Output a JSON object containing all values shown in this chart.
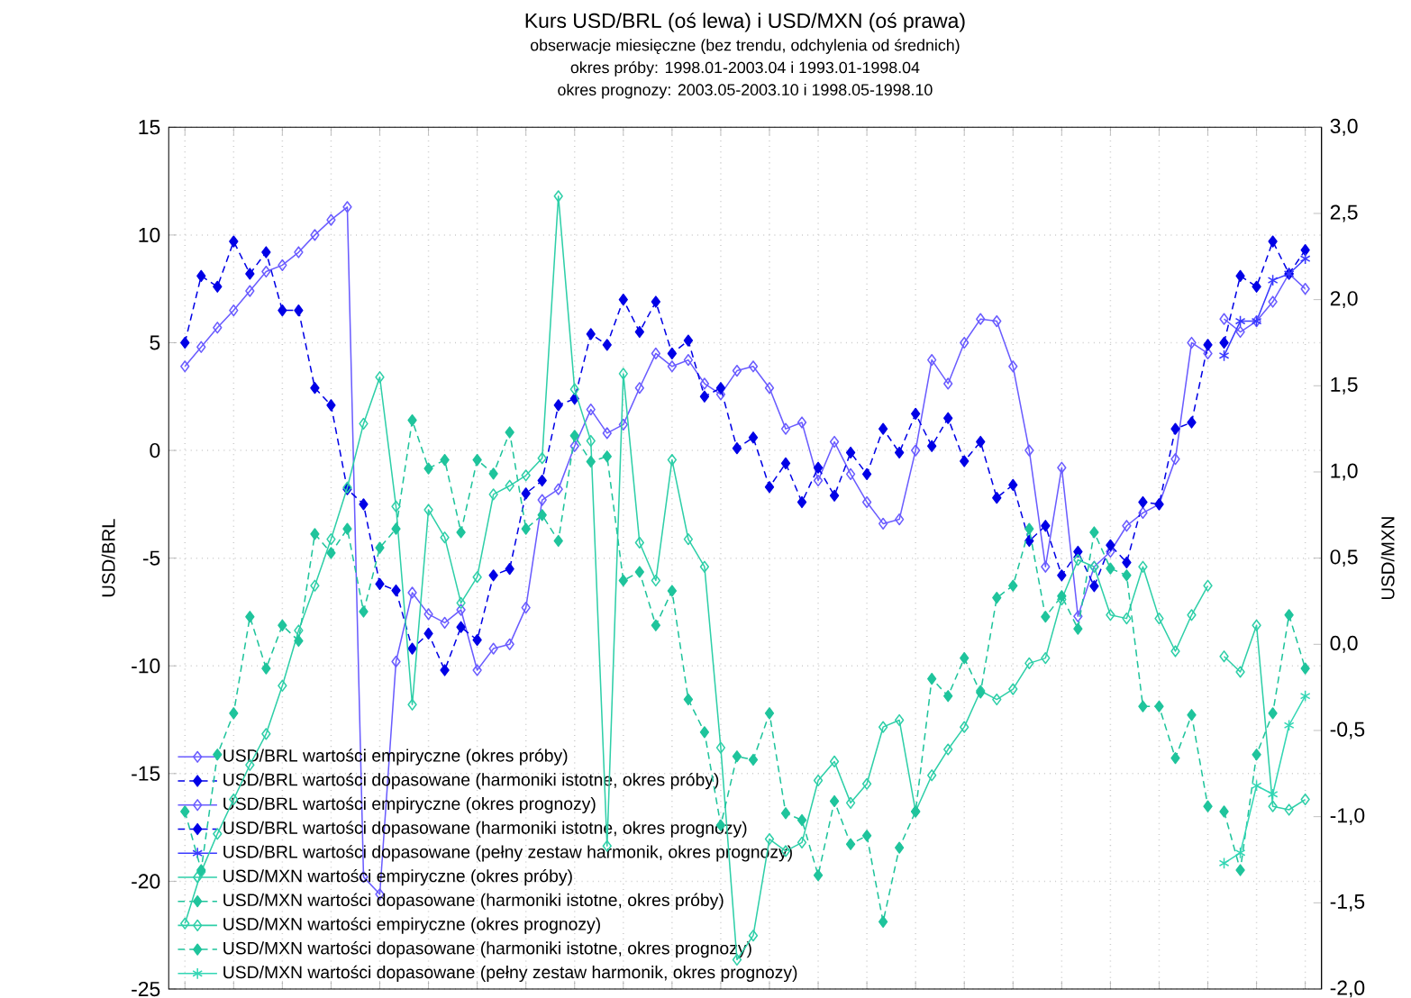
{
  "chart_data": {
    "type": "line",
    "title": "Kurs USD/BRL (oś lewa) i USD/MXN (oś prawa)",
    "subtitle": "obserwacje miesięczne (bez trendu, odchylenia od średnich)",
    "annotations": [
      "okres próby: 1998.01-2003.04 i 1993.01-1998.04",
      "okres prognozy: 2003.05-2003.10 i 1998.05-1998.10"
    ],
    "ylabel": "USD/BRL",
    "y2label": "USD/MXN",
    "categories": [
      null,
      null,
      null,
      null,
      null,
      null,
      null,
      null,
      null,
      null,
      null,
      null,
      null,
      null,
      null,
      null,
      null,
      null,
      null,
      null,
      null,
      null,
      null,
      null,
      null,
      null,
      null,
      null,
      null,
      null,
      null,
      null,
      null,
      null,
      null,
      null,
      null,
      null,
      null,
      null,
      null,
      null,
      null,
      null,
      null,
      null,
      null,
      null,
      null,
      null,
      null,
      null,
      null,
      null,
      null,
      null,
      null,
      null,
      null,
      null,
      null,
      null,
      null,
      null,
      null,
      null,
      null,
      null,
      null,
      null
    ],
    "ylim": [
      -25,
      15
    ],
    "yticks": [
      {
        "value": -25,
        "label": "-25"
      },
      {
        "value": -20,
        "label": "-20"
      },
      {
        "value": -15,
        "label": "-15"
      },
      {
        "value": -10,
        "label": "-10"
      },
      {
        "value": -5,
        "label": "-5"
      },
      {
        "value": 0,
        "label": "0"
      },
      {
        "value": 5,
        "label": "5"
      },
      {
        "value": 10,
        "label": "10"
      },
      {
        "value": 15,
        "label": "15"
      }
    ],
    "y2lim": [
      -2,
      3
    ],
    "y2ticks": [
      {
        "value": -2,
        "label": "-2,0"
      },
      {
        "value": -1.5,
        "label": "-1,5"
      },
      {
        "value": -1,
        "label": "-1,0"
      },
      {
        "value": -0.5,
        "label": "-0,5"
      },
      {
        "value": 0,
        "label": "0,0"
      },
      {
        "value": 0.5,
        "label": "0,5"
      },
      {
        "value": 1,
        "label": "1,0"
      },
      {
        "value": 1.5,
        "label": "1,5"
      },
      {
        "value": 2,
        "label": "2,0"
      },
      {
        "value": 2.5,
        "label": "2,5"
      },
      {
        "value": 3,
        "label": "3,0"
      }
    ],
    "tick_labels": "y",
    "grid": true,
    "legend": "bottom left",
    "series": [
      {
        "name": "USD/BRL wartości empiryczne (okres próby)",
        "color": "#6a5cff",
        "marker": "diamond",
        "line_style": "solid",
        "values": [
          3.9,
          4.8,
          5.7,
          6.5,
          7.4,
          8.3,
          8.6,
          9.2,
          10.0,
          10.7,
          11.3,
          -19.8,
          -20.6,
          -9.8,
          -6.6,
          -7.6,
          -8.0,
          -7.4,
          -10.2,
          -9.2,
          -9.0,
          -7.3,
          -2.3,
          -1.8,
          0.2,
          1.9,
          0.8,
          1.2,
          2.9,
          4.5,
          3.9,
          4.2,
          3.1,
          2.6,
          3.7,
          3.9,
          2.9,
          1.0,
          1.3,
          -1.4,
          0.4,
          -1.1,
          -2.4,
          -3.4,
          -3.2,
          0.0,
          4.2,
          3.1,
          5.0,
          6.1,
          6.0,
          3.9,
          0.0,
          -5.4,
          -0.8,
          -7.7,
          -5.4,
          -4.7,
          -3.5,
          -2.9,
          -2.5,
          -0.4,
          5.0,
          4.5,
          null,
          null,
          null,
          null,
          null,
          null
        ]
      },
      {
        "name": "USD/BRL wartości dopasowane (harmoniki istotne, okres próby)",
        "color": "#0000e6",
        "marker": "diamond",
        "line_style": "dashed",
        "values": [
          5.0,
          8.1,
          7.6,
          9.7,
          8.2,
          9.2,
          6.5,
          6.5,
          2.9,
          2.1,
          -1.8,
          -2.5,
          -6.2,
          -6.5,
          -9.2,
          -8.5,
          -10.2,
          -8.2,
          -8.8,
          -5.8,
          -5.5,
          -2.0,
          -1.4,
          2.1,
          2.4,
          5.4,
          4.9,
          7.0,
          5.5,
          6.9,
          4.5,
          5.1,
          2.5,
          2.9,
          0.1,
          0.6,
          -1.7,
          -0.6,
          -2.4,
          -0.8,
          -2.1,
          -0.1,
          -1.1,
          1.0,
          -0.1,
          1.7,
          0.2,
          1.5,
          -0.5,
          0.4,
          -2.2,
          -1.6,
          -4.2,
          -3.5,
          -5.8,
          -4.7,
          -6.3,
          -4.4,
          -5.2,
          -2.4,
          -2.5,
          1.0,
          1.3,
          4.9,
          null,
          null,
          null,
          null,
          null,
          null
        ]
      },
      {
        "name": "USD/BRL wartości empiryczne (okres prognozy)",
        "color": "#6a5cff",
        "marker": "diamond",
        "line_style": "solid",
        "values": [
          null,
          null,
          null,
          null,
          null,
          null,
          null,
          null,
          null,
          null,
          null,
          null,
          null,
          null,
          null,
          null,
          null,
          null,
          null,
          null,
          null,
          null,
          null,
          null,
          null,
          null,
          null,
          null,
          null,
          null,
          null,
          null,
          null,
          null,
          null,
          null,
          null,
          null,
          null,
          null,
          null,
          null,
          null,
          null,
          null,
          null,
          null,
          null,
          null,
          null,
          null,
          null,
          null,
          null,
          null,
          null,
          null,
          null,
          null,
          null,
          null,
          null,
          null,
          null,
          6.1,
          5.5,
          6.0,
          6.9,
          8.2,
          7.5
        ]
      },
      {
        "name": "USD/BRL wartości dopasowane (harmoniki istotne, okres prognozy)",
        "color": "#0000e6",
        "marker": "diamond",
        "line_style": "dashed",
        "values": [
          null,
          null,
          null,
          null,
          null,
          null,
          null,
          null,
          null,
          null,
          null,
          null,
          null,
          null,
          null,
          null,
          null,
          null,
          null,
          null,
          null,
          null,
          null,
          null,
          null,
          null,
          null,
          null,
          null,
          null,
          null,
          null,
          null,
          null,
          null,
          null,
          null,
          null,
          null,
          null,
          null,
          null,
          null,
          null,
          null,
          null,
          null,
          null,
          null,
          null,
          null,
          null,
          null,
          null,
          null,
          null,
          null,
          null,
          null,
          null,
          null,
          null,
          null,
          null,
          5.0,
          8.1,
          7.6,
          9.7,
          8.2,
          9.3
        ]
      },
      {
        "name": "USD/BRL wartości dopasowane (pełny zestaw harmonik, okres prognozy)",
        "color": "#3a3aff",
        "marker": "cross",
        "line_style": "solid",
        "values": [
          null,
          null,
          null,
          null,
          null,
          null,
          null,
          null,
          null,
          null,
          null,
          null,
          null,
          null,
          null,
          null,
          null,
          null,
          null,
          null,
          null,
          null,
          null,
          null,
          null,
          null,
          null,
          null,
          null,
          null,
          null,
          null,
          null,
          null,
          null,
          null,
          null,
          null,
          null,
          null,
          null,
          null,
          null,
          null,
          null,
          null,
          null,
          null,
          null,
          null,
          null,
          null,
          null,
          null,
          null,
          null,
          null,
          null,
          null,
          null,
          null,
          null,
          null,
          null,
          4.4,
          6.0,
          6.0,
          7.9,
          8.2,
          8.9
        ]
      },
      {
        "name": "USD/MXN wartości empiryczne (okres próby)",
        "color": "#2ecfa8",
        "marker": "diamond",
        "line_style": "solid",
        "axis": "y2",
        "values": [
          -1.62,
          -1.32,
          -1.1,
          -0.9,
          -0.7,
          -0.52,
          -0.24,
          0.08,
          0.34,
          0.61,
          0.91,
          1.28,
          1.55,
          0.8,
          -0.35,
          0.78,
          0.62,
          0.24,
          0.39,
          0.87,
          0.92,
          0.98,
          1.08,
          2.6,
          1.48,
          1.18,
          -1.17,
          1.57,
          0.59,
          0.37,
          1.07,
          0.61,
          0.45,
          -0.6,
          -1.83,
          -1.69,
          -1.13,
          -1.2,
          -1.15,
          -0.79,
          -0.68,
          -0.92,
          -0.81,
          -0.48,
          -0.44,
          -0.97,
          -0.76,
          -0.61,
          -0.48,
          -0.27,
          -0.32,
          -0.26,
          -0.11,
          -0.08,
          0.26,
          0.49,
          0.45,
          0.17,
          0.15,
          0.45,
          0.15,
          -0.04,
          0.17,
          0.34,
          null,
          null,
          null,
          null,
          null,
          null
        ]
      },
      {
        "name": "USD/MXN wartości dopasowane (harmoniki istotne, okres próby)",
        "color": "#1fc49c",
        "marker": "diamond",
        "line_style": "dashed",
        "axis": "y2",
        "values": [
          -0.97,
          -1.31,
          -0.64,
          -0.4,
          0.16,
          -0.14,
          0.11,
          0.02,
          0.64,
          0.53,
          0.67,
          0.19,
          0.56,
          0.67,
          1.3,
          1.02,
          1.07,
          0.65,
          1.07,
          0.99,
          1.23,
          0.67,
          0.75,
          0.6,
          1.21,
          1.06,
          1.09,
          0.37,
          0.42,
          0.11,
          0.31,
          -0.32,
          -0.51,
          -1.05,
          -0.65,
          -0.67,
          -0.4,
          -0.98,
          -1.02,
          -1.34,
          -0.91,
          -1.16,
          -1.11,
          -1.61,
          -1.18,
          -0.97,
          -0.2,
          -0.3,
          -0.08,
          -0.28,
          0.27,
          0.34,
          0.67,
          0.16,
          0.28,
          0.09,
          0.65,
          0.44,
          0.4,
          -0.36,
          -0.36,
          -0.66,
          -0.41,
          -0.94,
          null,
          null,
          null,
          null,
          null,
          null
        ]
      },
      {
        "name": "USD/MXN wartości empiryczne (okres prognozy)",
        "color": "#2ecfa8",
        "marker": "diamond",
        "line_style": "solid",
        "axis": "y2",
        "values": [
          null,
          null,
          null,
          null,
          null,
          null,
          null,
          null,
          null,
          null,
          null,
          null,
          null,
          null,
          null,
          null,
          null,
          null,
          null,
          null,
          null,
          null,
          null,
          null,
          null,
          null,
          null,
          null,
          null,
          null,
          null,
          null,
          null,
          null,
          null,
          null,
          null,
          null,
          null,
          null,
          null,
          null,
          null,
          null,
          null,
          null,
          null,
          null,
          null,
          null,
          null,
          null,
          null,
          null,
          null,
          null,
          null,
          null,
          null,
          null,
          null,
          null,
          null,
          null,
          -0.07,
          -0.16,
          0.11,
          -0.94,
          -0.96,
          -0.9
        ]
      },
      {
        "name": "USD/MXN wartości dopasowane (harmoniki istotne, okres prognozy)",
        "color": "#1fc49c",
        "marker": "diamond",
        "line_style": "dashed",
        "axis": "y2",
        "values": [
          null,
          null,
          null,
          null,
          null,
          null,
          null,
          null,
          null,
          null,
          null,
          null,
          null,
          null,
          null,
          null,
          null,
          null,
          null,
          null,
          null,
          null,
          null,
          null,
          null,
          null,
          null,
          null,
          null,
          null,
          null,
          null,
          null,
          null,
          null,
          null,
          null,
          null,
          null,
          null,
          null,
          null,
          null,
          null,
          null,
          null,
          null,
          null,
          null,
          null,
          null,
          null,
          null,
          null,
          null,
          null,
          null,
          null,
          null,
          null,
          null,
          null,
          null,
          null,
          -0.97,
          -1.31,
          -0.64,
          -0.4,
          0.17,
          -0.14
        ]
      },
      {
        "name": "USD/MXN wartości dopasowane (pełny zestaw harmonik, okres prognozy)",
        "color": "#33d6b4",
        "marker": "cross",
        "line_style": "solid",
        "axis": "y2",
        "values": [
          null,
          null,
          null,
          null,
          null,
          null,
          null,
          null,
          null,
          null,
          null,
          null,
          null,
          null,
          null,
          null,
          null,
          null,
          null,
          null,
          null,
          null,
          null,
          null,
          null,
          null,
          null,
          null,
          null,
          null,
          null,
          null,
          null,
          null,
          null,
          null,
          null,
          null,
          null,
          null,
          null,
          null,
          null,
          null,
          null,
          null,
          null,
          null,
          null,
          null,
          null,
          null,
          null,
          null,
          null,
          null,
          null,
          null,
          null,
          null,
          null,
          null,
          null,
          null,
          -1.27,
          -1.21,
          -0.82,
          -0.87,
          -0.47,
          -0.3
        ]
      }
    ]
  }
}
